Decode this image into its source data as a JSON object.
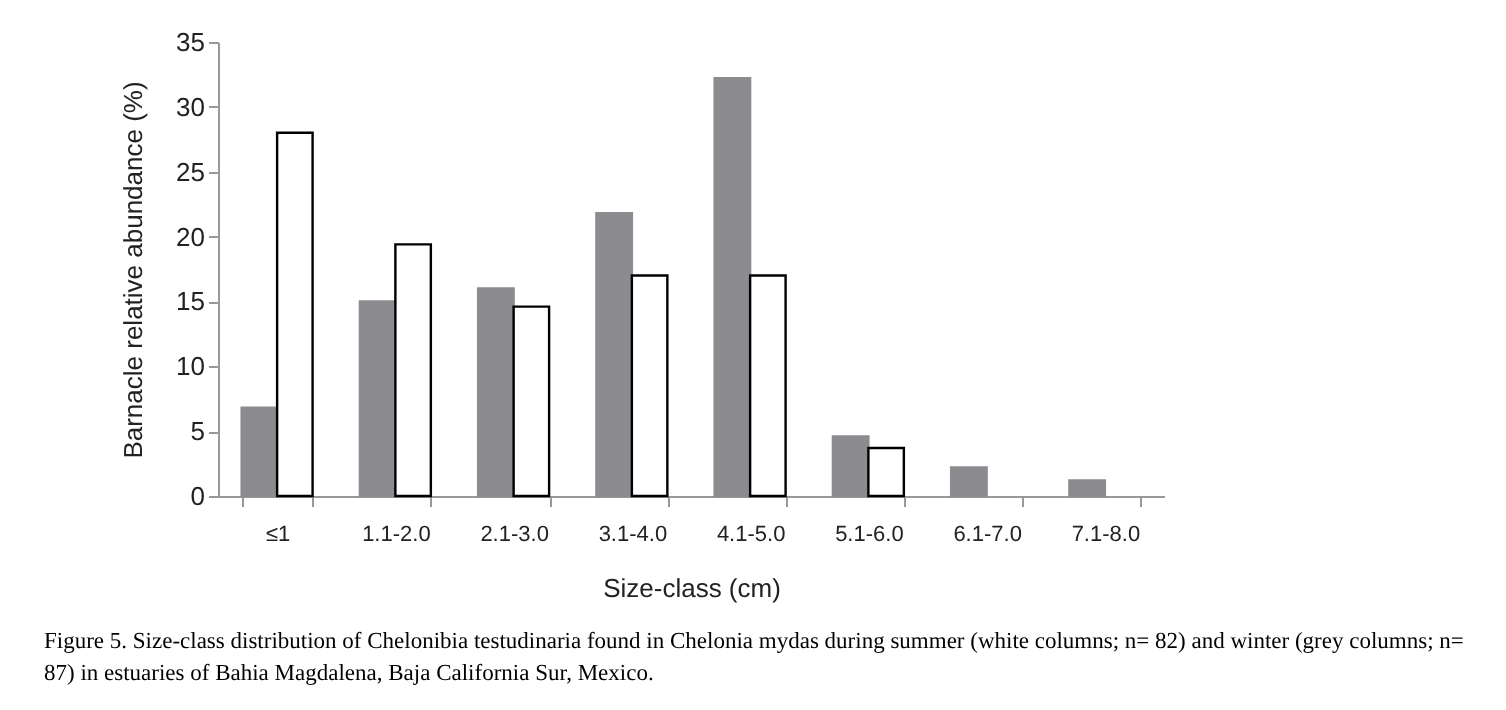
{
  "chart_data": {
    "type": "bar",
    "xlabel": "Size-class (cm)",
    "ylabel": "Barnacle relative  abundance (%)",
    "categories": [
      "≤1",
      "1.1-2.0",
      "2.1-3.0",
      "3.1-4.0",
      "4.1-5.0",
      "5.1-6.0",
      "6.1-7.0",
      "7.1-8.0"
    ],
    "series": [
      {
        "color": "#8c8c90",
        "values": [
          6.8,
          15,
          16,
          21.8,
          32.2,
          4.6,
          2.2,
          1.2
        ]
      },
      {
        "color": "#ffffff",
        "values": [
          28,
          19.4,
          14.6,
          17,
          17,
          3.7,
          null,
          null
        ]
      }
    ],
    "ylim": [
      0,
      35
    ],
    "yticks": [
      0,
      5,
      10,
      15,
      20,
      25,
      30,
      35
    ],
    "grid": false,
    "legend": false,
    "annotations": [
      "Figure 5. Size-class distribution of Chelonibia testudinaria found in Chelonia mydas during summer (white columns; n= 82) and winter (grey columns; n= 87) in estuaries of Bahia Magdalena, Baja California Sur, Mexico."
    ]
  }
}
